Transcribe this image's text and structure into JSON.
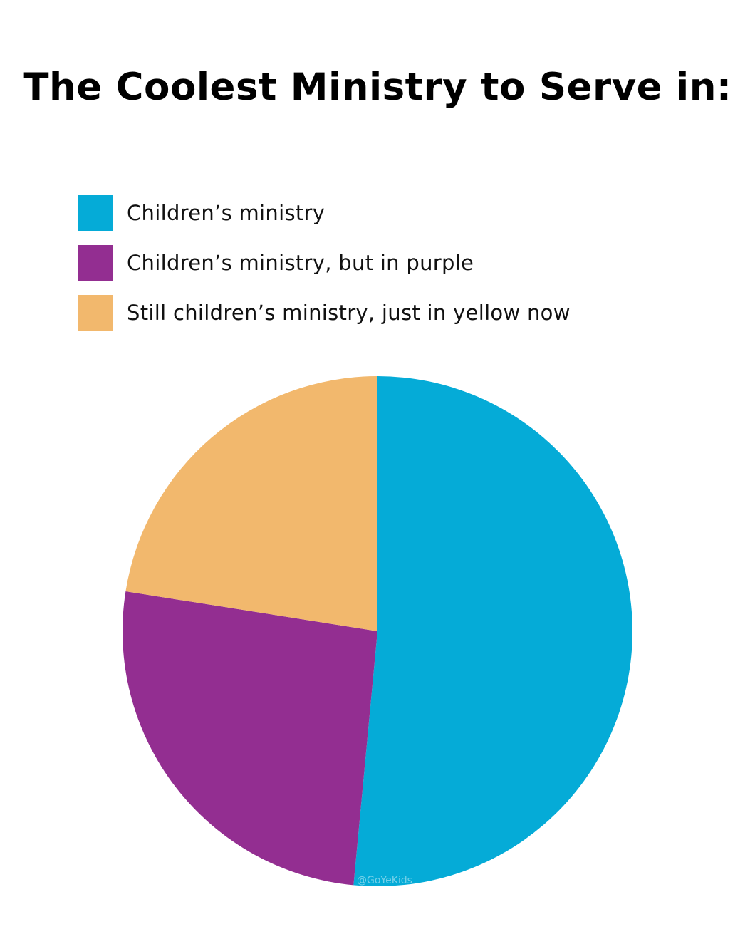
{
  "chart_data": {
    "type": "pie",
    "title": "The Coolest Ministry to Serve in:",
    "legend_position": "top-left",
    "series": [
      {
        "name": "Children’s ministry",
        "value": 51.5,
        "color": "#05ABD7"
      },
      {
        "name": "Children’s ministry, but in purple",
        "value": 26.0,
        "color": "#932E91"
      },
      {
        "name": "Still children’s ministry, just in yellow now",
        "value": 22.5,
        "color": "#F2B86D"
      }
    ],
    "watermark": "@GoYeKids"
  }
}
